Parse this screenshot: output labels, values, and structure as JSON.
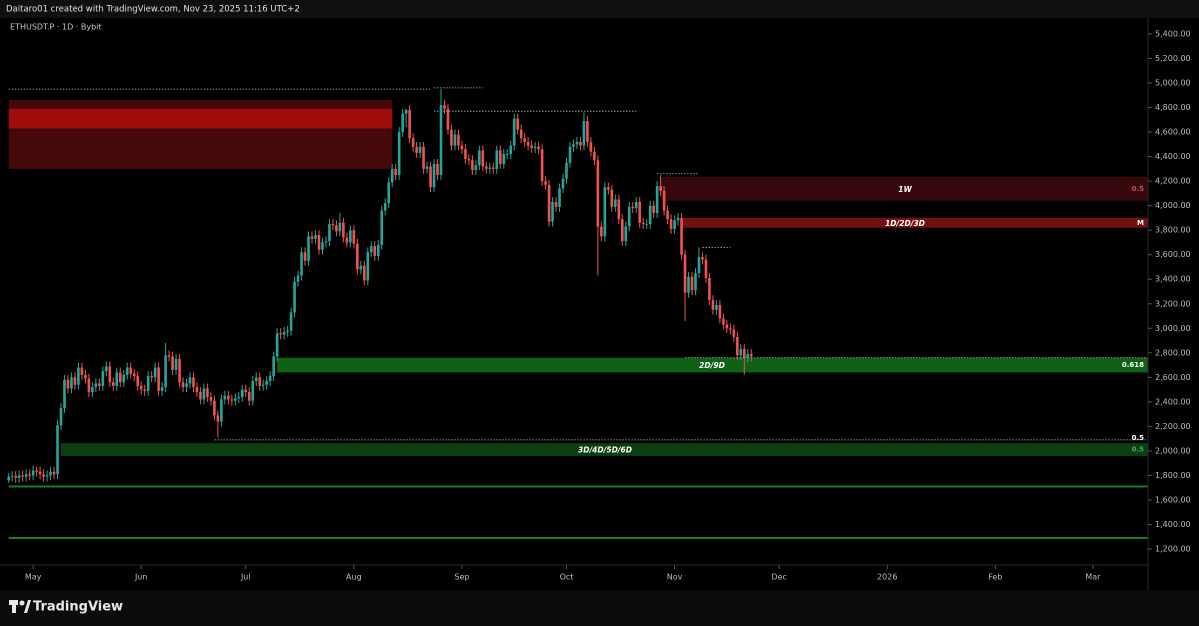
{
  "header": {
    "credit": "Daitaro01 created with TradingView.com, Nov 23, 2025 11:16 UTC+2",
    "symbol": "ETHUSDT.P · 1D · Bybit"
  },
  "footer": {
    "brand": "TradingView"
  },
  "chart_data": {
    "type": "candlestick",
    "up_color": "#26a69a",
    "down_color": "#ef5350",
    "xlim": [
      -2.5,
      326.8
    ],
    "ylim": [
      1070,
      5530
    ],
    "xticks": [
      {
        "value": 7,
        "label": "May"
      },
      {
        "value": 38,
        "label": "Jun"
      },
      {
        "value": 68,
        "label": "Jul"
      },
      {
        "value": 99,
        "label": "Aug"
      },
      {
        "value": 130,
        "label": "Sep"
      },
      {
        "value": 160,
        "label": "Oct"
      },
      {
        "value": 191,
        "label": "Nov"
      },
      {
        "value": 221,
        "label": "Dec"
      },
      {
        "value": 252,
        "label": "2026"
      },
      {
        "value": 283,
        "label": "Feb"
      },
      {
        "value": 311,
        "label": "Mar"
      }
    ],
    "yticks": [
      {
        "value": 1200,
        "label": "1,200.00"
      },
      {
        "value": 1400,
        "label": "1,400.00"
      },
      {
        "value": 1600,
        "label": "1,600.00"
      },
      {
        "value": 1800,
        "label": "1,800.00"
      },
      {
        "value": 2000,
        "label": "2,000.00"
      },
      {
        "value": 2200,
        "label": "2,200.00"
      },
      {
        "value": 2400,
        "label": "2,400.00"
      },
      {
        "value": 2600,
        "label": "2,600.00"
      },
      {
        "value": 2800,
        "label": "2,800.00"
      },
      {
        "value": 3000,
        "label": "3,000.00"
      },
      {
        "value": 3200,
        "label": "3,200.00"
      },
      {
        "value": 3400,
        "label": "3,400.00"
      },
      {
        "value": 3600,
        "label": "3,600.00"
      },
      {
        "value": 3800,
        "label": "3,800.00"
      },
      {
        "value": 4000,
        "label": "4,000.00"
      },
      {
        "value": 4200,
        "label": "4,200.00"
      },
      {
        "value": 4400,
        "label": "4,400.00"
      },
      {
        "value": 4600,
        "label": "4,600.00"
      },
      {
        "value": 4800,
        "label": "4,800.00"
      },
      {
        "value": 5000,
        "label": "5,000.00"
      },
      {
        "value": 5200,
        "label": "5,200.00"
      },
      {
        "value": 5400,
        "label": "5,400.00"
      }
    ],
    "zones": [
      {
        "low": 4300,
        "high": 4860,
        "start": 0,
        "end": 110,
        "color": "#4a0909"
      },
      {
        "low": 4630,
        "high": 4790,
        "start": 0,
        "end": 110,
        "color": "#a30d0d"
      },
      {
        "label": "1W",
        "right_label": "0.5",
        "low": 4040,
        "high": 4235,
        "start": 187,
        "color": "#3a080c"
      },
      {
        "label": "1D/2D/3D",
        "right_label": "M",
        "low": 3820,
        "high": 3900,
        "start": 193,
        "color": "#7a1010"
      },
      {
        "label": "2D/9D",
        "right_label": "0.618",
        "low": 2640,
        "high": 2760,
        "start": 77,
        "color": "#0f6616"
      },
      {
        "label": "3D/4D/5D/6D",
        "right_label": "0.5",
        "low": 1958,
        "high": 2064,
        "start": 15,
        "color": "#0c4212"
      }
    ],
    "levels": [
      {
        "price": 4950,
        "start": 0,
        "end": 121,
        "color": "#bbbbbb"
      },
      {
        "price": 4960,
        "start": 122,
        "end": 136,
        "color": "#bbbbbb"
      },
      {
        "price": 4770,
        "start": 122,
        "end": 180,
        "color": "#bbbbbb"
      },
      {
        "price": 4260,
        "start": 186,
        "end": 198,
        "color": "#bbbbbb"
      },
      {
        "price": 3660,
        "start": 199,
        "end": 207,
        "color": "#bbbbbb"
      },
      {
        "price": 2760,
        "start": 194,
        "color": "#bbbbbb"
      },
      {
        "price": 2090,
        "start": 59,
        "color": "#bbbbbb",
        "label": "0.5"
      },
      {
        "price": 1710,
        "start": 0,
        "color": "#1d7a25"
      },
      {
        "price": 1290,
        "start": 0,
        "color": "#1d7a25"
      }
    ],
    "candles": [
      [
        1760,
        1820,
        1740,
        1790
      ],
      [
        1790,
        1835,
        1750,
        1795
      ],
      [
        1795,
        1835,
        1740,
        1780
      ],
      [
        1780,
        1840,
        1740,
        1800
      ],
      [
        1800,
        1840,
        1750,
        1790
      ],
      [
        1790,
        1850,
        1750,
        1810
      ],
      [
        1810,
        1850,
        1760,
        1800
      ],
      [
        1800,
        1880,
        1760,
        1840
      ],
      [
        1840,
        1870,
        1790,
        1830
      ],
      [
        1830,
        1870,
        1770,
        1810
      ],
      [
        1810,
        1850,
        1750,
        1790
      ],
      [
        1790,
        1840,
        1750,
        1800
      ],
      [
        1800,
        1870,
        1760,
        1830
      ],
      [
        1830,
        1870,
        1770,
        1810
      ],
      [
        1810,
        2250,
        1770,
        2210
      ],
      [
        2210,
        2390,
        2170,
        2350
      ],
      [
        2350,
        2620,
        2310,
        2580
      ],
      [
        2580,
        2620,
        2470,
        2510
      ],
      [
        2510,
        2640,
        2470,
        2600
      ],
      [
        2600,
        2640,
        2500,
        2540
      ],
      [
        2540,
        2720,
        2500,
        2680
      ],
      [
        2680,
        2720,
        2580,
        2620
      ],
      [
        2620,
        2660,
        2550,
        2590
      ],
      [
        2590,
        2630,
        2440,
        2480
      ],
      [
        2480,
        2560,
        2440,
        2520
      ],
      [
        2520,
        2590,
        2480,
        2550
      ],
      [
        2550,
        2590,
        2490,
        2530
      ],
      [
        2530,
        2690,
        2490,
        2650
      ],
      [
        2650,
        2730,
        2610,
        2690
      ],
      [
        2690,
        2730,
        2520,
        2560
      ],
      [
        2560,
        2600,
        2490,
        2530
      ],
      [
        2530,
        2680,
        2490,
        2640
      ],
      [
        2640,
        2680,
        2520,
        2560
      ],
      [
        2560,
        2660,
        2520,
        2620
      ],
      [
        2620,
        2720,
        2580,
        2680
      ],
      [
        2680,
        2720,
        2590,
        2630
      ],
      [
        2630,
        2670,
        2570,
        2610
      ],
      [
        2610,
        2650,
        2490,
        2530
      ],
      [
        2530,
        2570,
        2460,
        2500
      ],
      [
        2500,
        2540,
        2450,
        2490
      ],
      [
        2490,
        2650,
        2450,
        2610
      ],
      [
        2610,
        2650,
        2560,
        2600
      ],
      [
        2600,
        2720,
        2560,
        2680
      ],
      [
        2680,
        2720,
        2450,
        2490
      ],
      [
        2490,
        2560,
        2450,
        2520
      ],
      [
        2520,
        2880,
        2480,
        2780
      ],
      [
        2780,
        2820,
        2730,
        2770
      ],
      [
        2770,
        2810,
        2620,
        2660
      ],
      [
        2660,
        2790,
        2620,
        2750
      ],
      [
        2750,
        2790,
        2520,
        2560
      ],
      [
        2560,
        2600,
        2480,
        2520
      ],
      [
        2520,
        2590,
        2480,
        2550
      ],
      [
        2550,
        2640,
        2510,
        2600
      ],
      [
        2600,
        2640,
        2480,
        2520
      ],
      [
        2520,
        2560,
        2440,
        2480
      ],
      [
        2480,
        2520,
        2380,
        2420
      ],
      [
        2420,
        2550,
        2380,
        2510
      ],
      [
        2510,
        2550,
        2400,
        2440
      ],
      [
        2440,
        2480,
        2370,
        2410
      ],
      [
        2410,
        2450,
        2250,
        2290
      ],
      [
        2290,
        2330,
        2110,
        2240
      ],
      [
        2240,
        2460,
        2200,
        2420
      ],
      [
        2420,
        2490,
        2380,
        2450
      ],
      [
        2450,
        2490,
        2380,
        2420
      ],
      [
        2420,
        2460,
        2370,
        2410
      ],
      [
        2410,
        2470,
        2370,
        2430
      ],
      [
        2430,
        2480,
        2390,
        2440
      ],
      [
        2440,
        2540,
        2400,
        2500
      ],
      [
        2500,
        2540,
        2440,
        2480
      ],
      [
        2480,
        2520,
        2370,
        2410
      ],
      [
        2410,
        2610,
        2370,
        2570
      ],
      [
        2570,
        2640,
        2530,
        2600
      ],
      [
        2600,
        2640,
        2490,
        2530
      ],
      [
        2530,
        2580,
        2490,
        2540
      ],
      [
        2540,
        2610,
        2500,
        2570
      ],
      [
        2570,
        2650,
        2530,
        2610
      ],
      [
        2610,
        2810,
        2570,
        2770
      ],
      [
        2770,
        3000,
        2730,
        2960
      ],
      [
        2960,
        3000,
        2910,
        2950
      ],
      [
        2950,
        3010,
        2910,
        2970
      ],
      [
        2970,
        3020,
        2930,
        2980
      ],
      [
        2980,
        3170,
        2940,
        3130
      ],
      [
        3130,
        3420,
        3090,
        3380
      ],
      [
        3380,
        3470,
        3340,
        3430
      ],
      [
        3430,
        3660,
        3390,
        3620
      ],
      [
        3620,
        3660,
        3510,
        3550
      ],
      [
        3550,
        3790,
        3510,
        3750
      ],
      [
        3750,
        3790,
        3690,
        3730
      ],
      [
        3730,
        3800,
        3690,
        3760
      ],
      [
        3760,
        3800,
        3600,
        3640
      ],
      [
        3640,
        3740,
        3600,
        3700
      ],
      [
        3700,
        3750,
        3660,
        3710
      ],
      [
        3710,
        3890,
        3670,
        3850
      ],
      [
        3850,
        3890,
        3800,
        3840
      ],
      [
        3840,
        3880,
        3750,
        3790
      ],
      [
        3790,
        3940,
        3750,
        3860
      ],
      [
        3860,
        3900,
        3700,
        3740
      ],
      [
        3740,
        3780,
        3660,
        3700
      ],
      [
        3700,
        3840,
        3660,
        3800
      ],
      [
        3800,
        3840,
        3650,
        3690
      ],
      [
        3690,
        3730,
        3440,
        3480
      ],
      [
        3480,
        3550,
        3440,
        3510
      ],
      [
        3510,
        3550,
        3350,
        3390
      ],
      [
        3390,
        3660,
        3350,
        3620
      ],
      [
        3620,
        3710,
        3580,
        3670
      ],
      [
        3670,
        3710,
        3550,
        3590
      ],
      [
        3590,
        3720,
        3550,
        3680
      ],
      [
        3680,
        4000,
        3640,
        3960
      ],
      [
        3960,
        4060,
        3920,
        4020
      ],
      [
        4020,
        4230,
        3980,
        4190
      ],
      [
        4190,
        4340,
        4150,
        4300
      ],
      [
        4300,
        4340,
        4210,
        4250
      ],
      [
        4250,
        4640,
        4210,
        4600
      ],
      [
        4600,
        4790,
        4560,
        4750
      ],
      [
        4750,
        4790,
        4640,
        4780
      ],
      [
        4780,
        4820,
        4510,
        4550
      ],
      [
        4550,
        4590,
        4440,
        4480
      ],
      [
        4480,
        4520,
        4390,
        4430
      ],
      [
        4430,
        4520,
        4390,
        4480
      ],
      [
        4480,
        4520,
        4260,
        4300
      ],
      [
        4300,
        4360,
        4260,
        4320
      ],
      [
        4320,
        4360,
        4110,
        4150
      ],
      [
        4150,
        4380,
        4110,
        4340
      ],
      [
        4340,
        4380,
        4210,
        4250
      ],
      [
        4250,
        4950,
        4210,
        4820
      ],
      [
        4820,
        4860,
        4750,
        4790
      ],
      [
        4790,
        4830,
        4580,
        4620
      ],
      [
        4620,
        4660,
        4450,
        4490
      ],
      [
        4490,
        4620,
        4450,
        4580
      ],
      [
        4580,
        4620,
        4450,
        4490
      ],
      [
        4490,
        4530,
        4420,
        4460
      ],
      [
        4460,
        4500,
        4340,
        4380
      ],
      [
        4380,
        4420,
        4330,
        4370
      ],
      [
        4370,
        4410,
        4250,
        4290
      ],
      [
        4290,
        4370,
        4250,
        4330
      ],
      [
        4330,
        4490,
        4290,
        4450
      ],
      [
        4450,
        4490,
        4280,
        4320
      ],
      [
        4320,
        4360,
        4260,
        4300
      ],
      [
        4300,
        4350,
        4260,
        4310
      ],
      [
        4310,
        4350,
        4260,
        4300
      ],
      [
        4300,
        4490,
        4260,
        4450
      ],
      [
        4450,
        4490,
        4300,
        4340
      ],
      [
        4340,
        4460,
        4300,
        4420
      ],
      [
        4420,
        4460,
        4380,
        4420
      ],
      [
        4420,
        4530,
        4380,
        4490
      ],
      [
        4490,
        4750,
        4450,
        4710
      ],
      [
        4710,
        4750,
        4580,
        4620
      ],
      [
        4620,
        4660,
        4510,
        4550
      ],
      [
        4550,
        4590,
        4480,
        4520
      ],
      [
        4520,
        4560,
        4450,
        4490
      ],
      [
        4490,
        4530,
        4430,
        4470
      ],
      [
        4470,
        4520,
        4430,
        4480
      ],
      [
        4480,
        4520,
        4420,
        4460
      ],
      [
        4460,
        4500,
        4160,
        4200
      ],
      [
        4200,
        4240,
        4130,
        4170
      ],
      [
        4170,
        4210,
        3830,
        3870
      ],
      [
        3870,
        4070,
        3830,
        4030
      ],
      [
        4030,
        4070,
        3950,
        3990
      ],
      [
        3990,
        4180,
        3950,
        4140
      ],
      [
        4140,
        4260,
        4100,
        4220
      ],
      [
        4220,
        4390,
        4180,
        4350
      ],
      [
        4350,
        4520,
        4310,
        4480
      ],
      [
        4480,
        4540,
        4440,
        4500
      ],
      [
        4500,
        4560,
        4460,
        4520
      ],
      [
        4520,
        4560,
        4450,
        4490
      ],
      [
        4490,
        4760,
        4450,
        4690
      ],
      [
        4690,
        4730,
        4480,
        4520
      ],
      [
        4520,
        4560,
        4400,
        4440
      ],
      [
        4440,
        4480,
        4330,
        4370
      ],
      [
        4370,
        4410,
        3430,
        3830
      ],
      [
        3830,
        3870,
        3710,
        3750
      ],
      [
        3750,
        4190,
        3710,
        4150
      ],
      [
        4150,
        4190,
        4090,
        4130
      ],
      [
        4130,
        4170,
        3950,
        3990
      ],
      [
        3990,
        4090,
        3950,
        4050
      ],
      [
        4050,
        4090,
        3850,
        3890
      ],
      [
        3890,
        3930,
        3670,
        3710
      ],
      [
        3710,
        3870,
        3670,
        3830
      ],
      [
        3830,
        4030,
        3790,
        3990
      ],
      [
        3990,
        4030,
        3940,
        3980
      ],
      [
        3980,
        4070,
        3940,
        4030
      ],
      [
        4030,
        4070,
        3820,
        3860
      ],
      [
        3860,
        3900,
        3810,
        3850
      ],
      [
        3850,
        3890,
        3810,
        3850
      ],
      [
        3850,
        4040,
        3810,
        4000
      ],
      [
        4000,
        4040,
        3900,
        3940
      ],
      [
        3940,
        4200,
        3900,
        4160
      ],
      [
        4160,
        4250,
        4080,
        4120
      ],
      [
        4120,
        4160,
        3920,
        3960
      ],
      [
        3960,
        4000,
        3850,
        3890
      ],
      [
        3890,
        3930,
        3770,
        3810
      ],
      [
        3810,
        3920,
        3770,
        3880
      ],
      [
        3880,
        3940,
        3840,
        3900
      ],
      [
        3900,
        3940,
        3560,
        3600
      ],
      [
        3600,
        3640,
        3060,
        3290
      ],
      [
        3290,
        3460,
        3250,
        3420
      ],
      [
        3420,
        3460,
        3270,
        3310
      ],
      [
        3310,
        3490,
        3270,
        3450
      ],
      [
        3450,
        3660,
        3410,
        3580
      ],
      [
        3580,
        3620,
        3520,
        3560
      ],
      [
        3560,
        3600,
        3370,
        3410
      ],
      [
        3410,
        3450,
        3190,
        3230
      ],
      [
        3230,
        3270,
        3110,
        3150
      ],
      [
        3150,
        3230,
        3110,
        3190
      ],
      [
        3190,
        3230,
        3040,
        3080
      ],
      [
        3080,
        3120,
        2990,
        3030
      ],
      [
        3030,
        3070,
        2960,
        3000
      ],
      [
        3000,
        3040,
        2950,
        2990
      ],
      [
        2990,
        3030,
        2890,
        2930
      ],
      [
        2930,
        2970,
        2740,
        2780
      ],
      [
        2780,
        2870,
        2740,
        2830
      ],
      [
        2830,
        2870,
        2620,
        2760
      ],
      [
        2760,
        2830,
        2720,
        2790
      ],
      [
        2790,
        2830,
        2730,
        2770
      ]
    ]
  }
}
